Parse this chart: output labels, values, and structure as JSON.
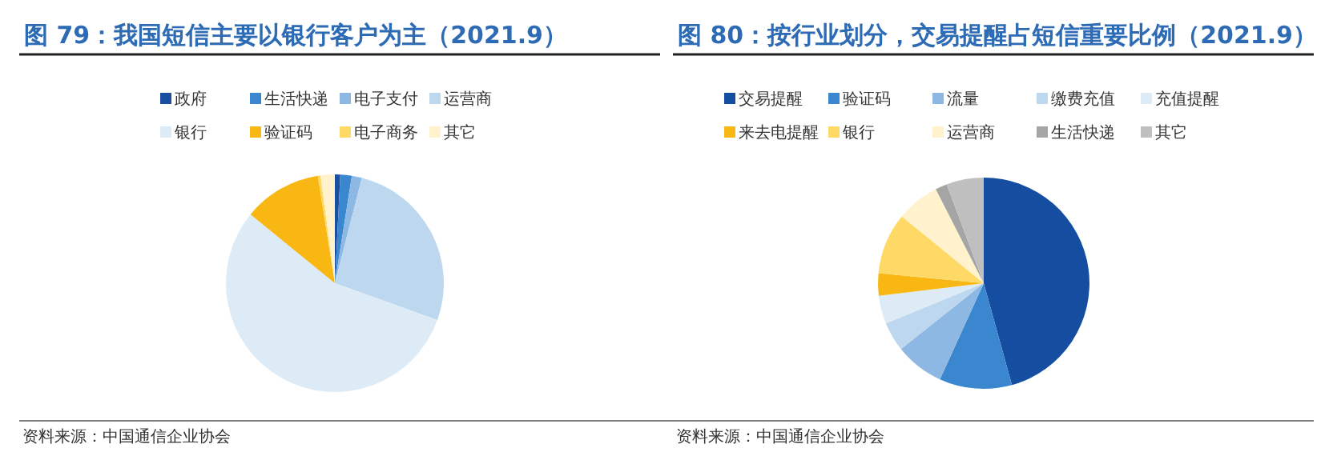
{
  "chart_data": [
    {
      "type": "pie",
      "title": "图 79：我国短信主要以银行客户为主（2021.9）",
      "legend": "top",
      "categories": [
        "政府",
        "生活快递",
        "电子支付",
        "运营商",
        "银行",
        "验证码",
        "电子商务",
        "其它"
      ],
      "values": [
        0.8,
        1.7,
        1.5,
        26.5,
        55.4,
        11.6,
        0.4,
        2.1
      ],
      "colors": [
        "#1a4fa0",
        "#3a87cf",
        "#8db8e3",
        "#bdd7ee",
        "#ddebf7",
        "#f8b712",
        "#ffd966",
        "#fff2cc"
      ],
      "annotations": [
        "资料来源：中国通信企业协会"
      ]
    },
    {
      "type": "pie",
      "title": "图 80：按行业划分，交易提醒占短信重要比例（2021.9）",
      "legend": "top",
      "categories": [
        "交易提醒",
        "验证码",
        "流量",
        "缴费充值",
        "充值提醒",
        "来去电提醒",
        "银行",
        "运营商",
        "生活快递",
        "其它"
      ],
      "values": [
        45.7,
        11.1,
        7.5,
        4.5,
        4.3,
        3.4,
        9.4,
        6.6,
        1.8,
        5.7
      ],
      "colors": [
        "#154ea0",
        "#3a87cf",
        "#8db8e3",
        "#bdd7ee",
        "#ddebf7",
        "#f8b712",
        "#ffd966",
        "#fff2cc",
        "#a5a5a5",
        "#bfbfbf"
      ],
      "annotations": [
        "资料来源：中国通信企业协会"
      ]
    }
  ]
}
